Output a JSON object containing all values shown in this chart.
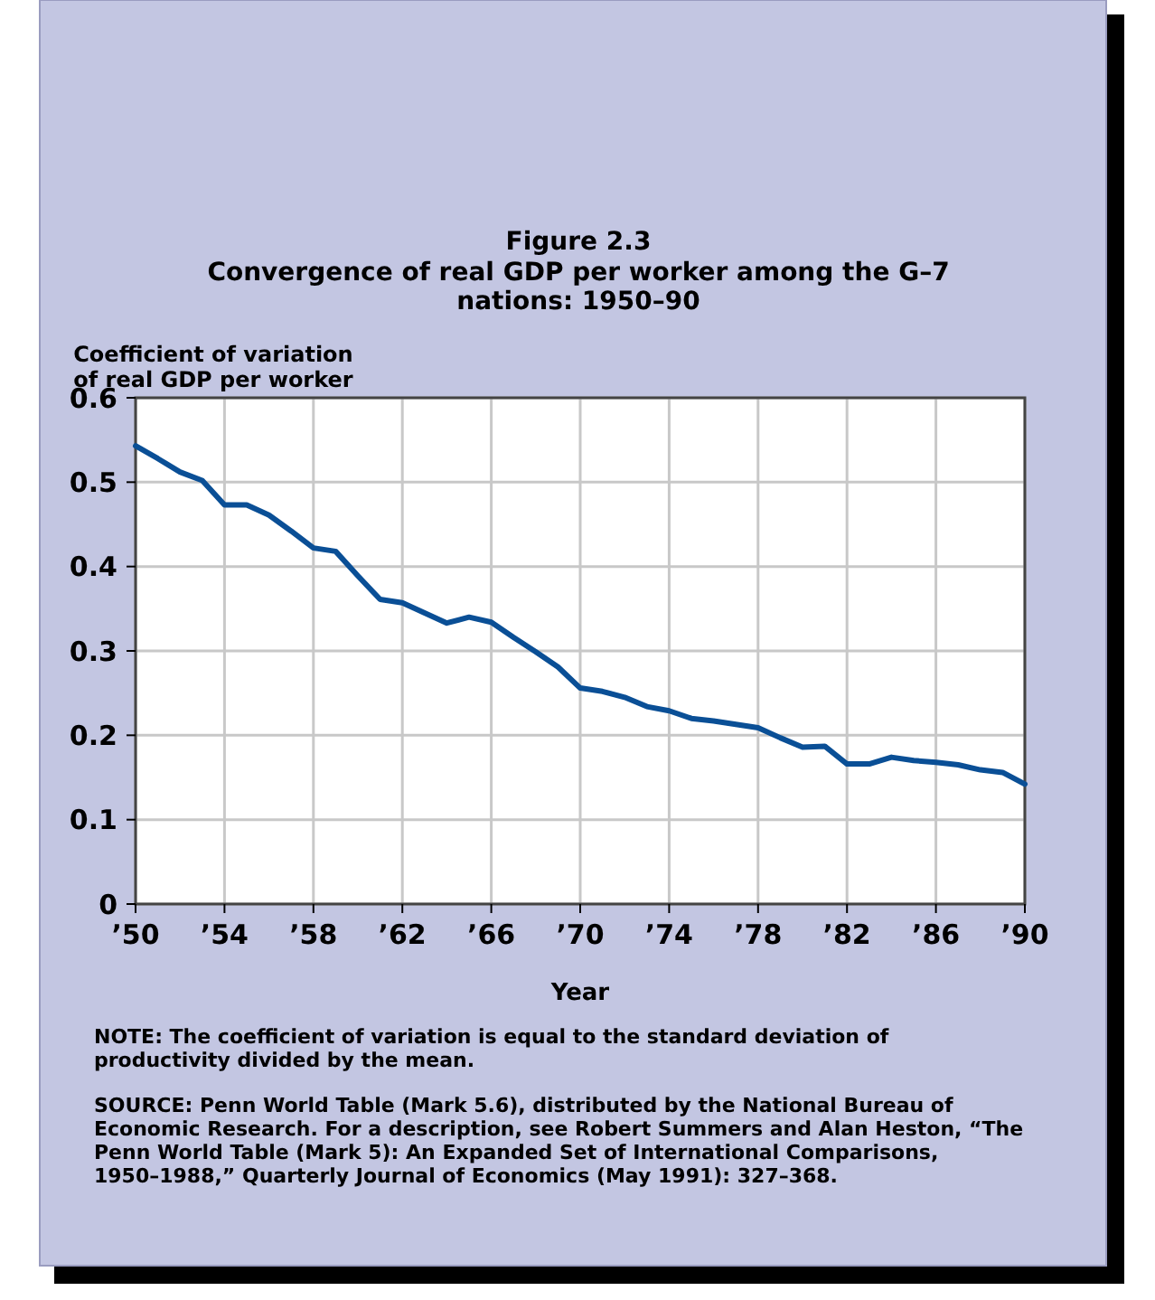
{
  "chart_data": {
    "type": "line",
    "title": "Figure 2.3",
    "subtitle": "Convergence of real GDP per worker among the G–7 nations: 1950–90",
    "xlabel": "Year",
    "ylabel": "Coefficient of variation of real GDP per worker",
    "x": [
      1950,
      1951,
      1952,
      1953,
      1954,
      1955,
      1956,
      1957,
      1958,
      1959,
      1960,
      1961,
      1962,
      1963,
      1964,
      1965,
      1966,
      1967,
      1968,
      1969,
      1970,
      1971,
      1972,
      1973,
      1974,
      1975,
      1976,
      1977,
      1978,
      1979,
      1980,
      1981,
      1982,
      1983,
      1984,
      1985,
      1986,
      1987,
      1988,
      1989,
      1990
    ],
    "series": [
      {
        "color": "#0a4f96",
        "values": [
          0.543,
          0.528,
          0.512,
          0.502,
          0.473,
          0.473,
          0.461,
          0.442,
          0.422,
          0.418,
          0.389,
          0.361,
          0.357,
          0.345,
          0.333,
          0.34,
          0.334,
          0.316,
          0.299,
          0.281,
          0.256,
          0.252,
          0.245,
          0.234,
          0.229,
          0.22,
          0.217,
          0.213,
          0.209,
          0.197,
          0.186,
          0.187,
          0.166,
          0.166,
          0.174,
          0.17,
          0.168,
          0.165,
          0.159,
          0.156,
          0.142
        ]
      }
    ],
    "xlim": [
      1950,
      1990
    ],
    "xticks": [
      {
        "value": 1950,
        "label": "’50"
      },
      {
        "value": 1954,
        "label": "’54"
      },
      {
        "value": 1958,
        "label": "’58"
      },
      {
        "value": 1962,
        "label": "’62"
      },
      {
        "value": 1966,
        "label": "’66"
      },
      {
        "value": 1970,
        "label": "’70"
      },
      {
        "value": 1974,
        "label": "’74"
      },
      {
        "value": 1978,
        "label": "’78"
      },
      {
        "value": 1982,
        "label": "’82"
      },
      {
        "value": 1986,
        "label": "’86"
      },
      {
        "value": 1990,
        "label": "’90"
      }
    ],
    "ylim": [
      0,
      0.6
    ],
    "yticks": [
      0,
      0.1,
      0.2,
      0.3,
      0.4,
      0.5,
      0.6
    ],
    "grid": true,
    "marker": "none",
    "line_style": "solid",
    "annotations": [
      "NOTE: The coefficient of variation is equal to the standard deviation of productivity divided by the mean.",
      "SOURCE: Penn World Table (Mark 5.6), distributed by the National Bureau of Economic Research. For a description, see Robert Summers and Alan Heston, “The Penn World Table (Mark 5): An Expanded Set of International Comparisons, 1950–1988,” Quarterly Journal of Economics (May 1991): 327–368."
    ]
  }
}
